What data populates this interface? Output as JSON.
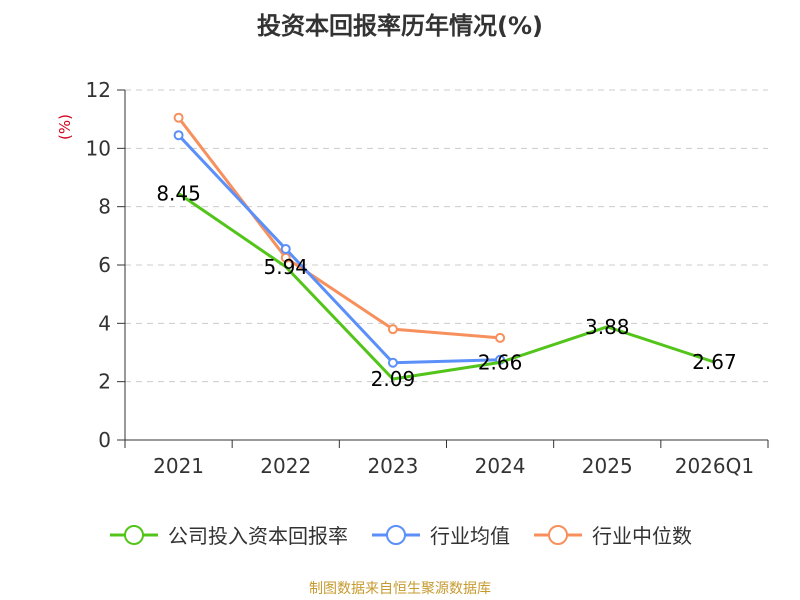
{
  "title": "投资本回报率历年情况(%)",
  "source_note": "制图数据来自恒生聚源数据库",
  "chart_data": {
    "type": "line",
    "title": "投资本回报率历年情况(%)",
    "ylabel": "(%)",
    "xlabel": "",
    "categories": [
      "2021",
      "2022",
      "2023",
      "2024",
      "2025",
      "2026Q1"
    ],
    "ylim": [
      0,
      12
    ],
    "yticks": [
      0,
      2,
      4,
      6,
      8,
      10,
      12
    ],
    "grid": true,
    "legend_position": "bottom",
    "series": [
      {
        "name": "公司投入资本回报率",
        "color": "#52c41a",
        "values": [
          8.45,
          5.94,
          2.09,
          2.66,
          3.88,
          2.67
        ],
        "labels": [
          "8.45",
          "5.94",
          "2.09",
          "2.66",
          "3.88",
          "2.67"
        ]
      },
      {
        "name": "行业均值",
        "color": "#5b8ff9",
        "values": [
          10.45,
          6.55,
          2.65,
          2.75,
          null,
          null
        ]
      },
      {
        "name": "行业中位数",
        "color": "#f7905d",
        "values": [
          11.05,
          6.25,
          3.8,
          3.5,
          null,
          null
        ]
      }
    ]
  }
}
